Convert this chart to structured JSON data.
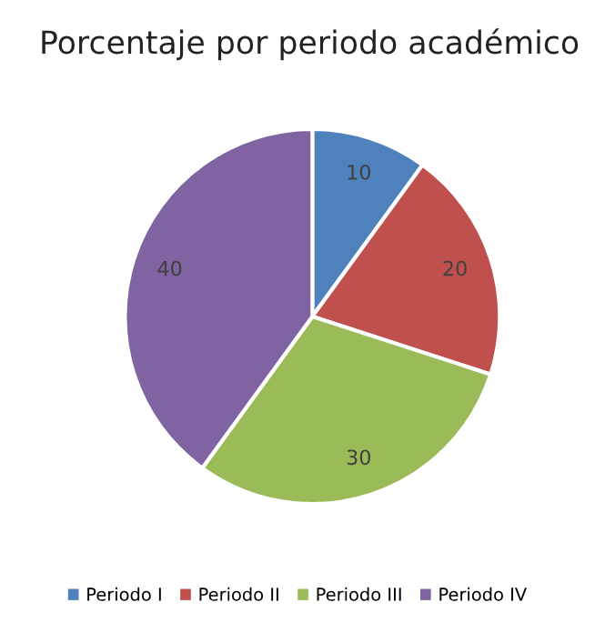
{
  "chart_data": {
    "type": "pie",
    "title": "Porcentaje por periodo académico",
    "categories": [
      "Periodo I",
      "Periodo II",
      "Periodo III",
      "Periodo IV"
    ],
    "values": [
      10,
      20,
      30,
      40
    ],
    "colors": [
      "#4f81bd",
      "#c0504d",
      "#9bbb59",
      "#8064a2"
    ],
    "data_labels": true,
    "legend": "bottom"
  }
}
